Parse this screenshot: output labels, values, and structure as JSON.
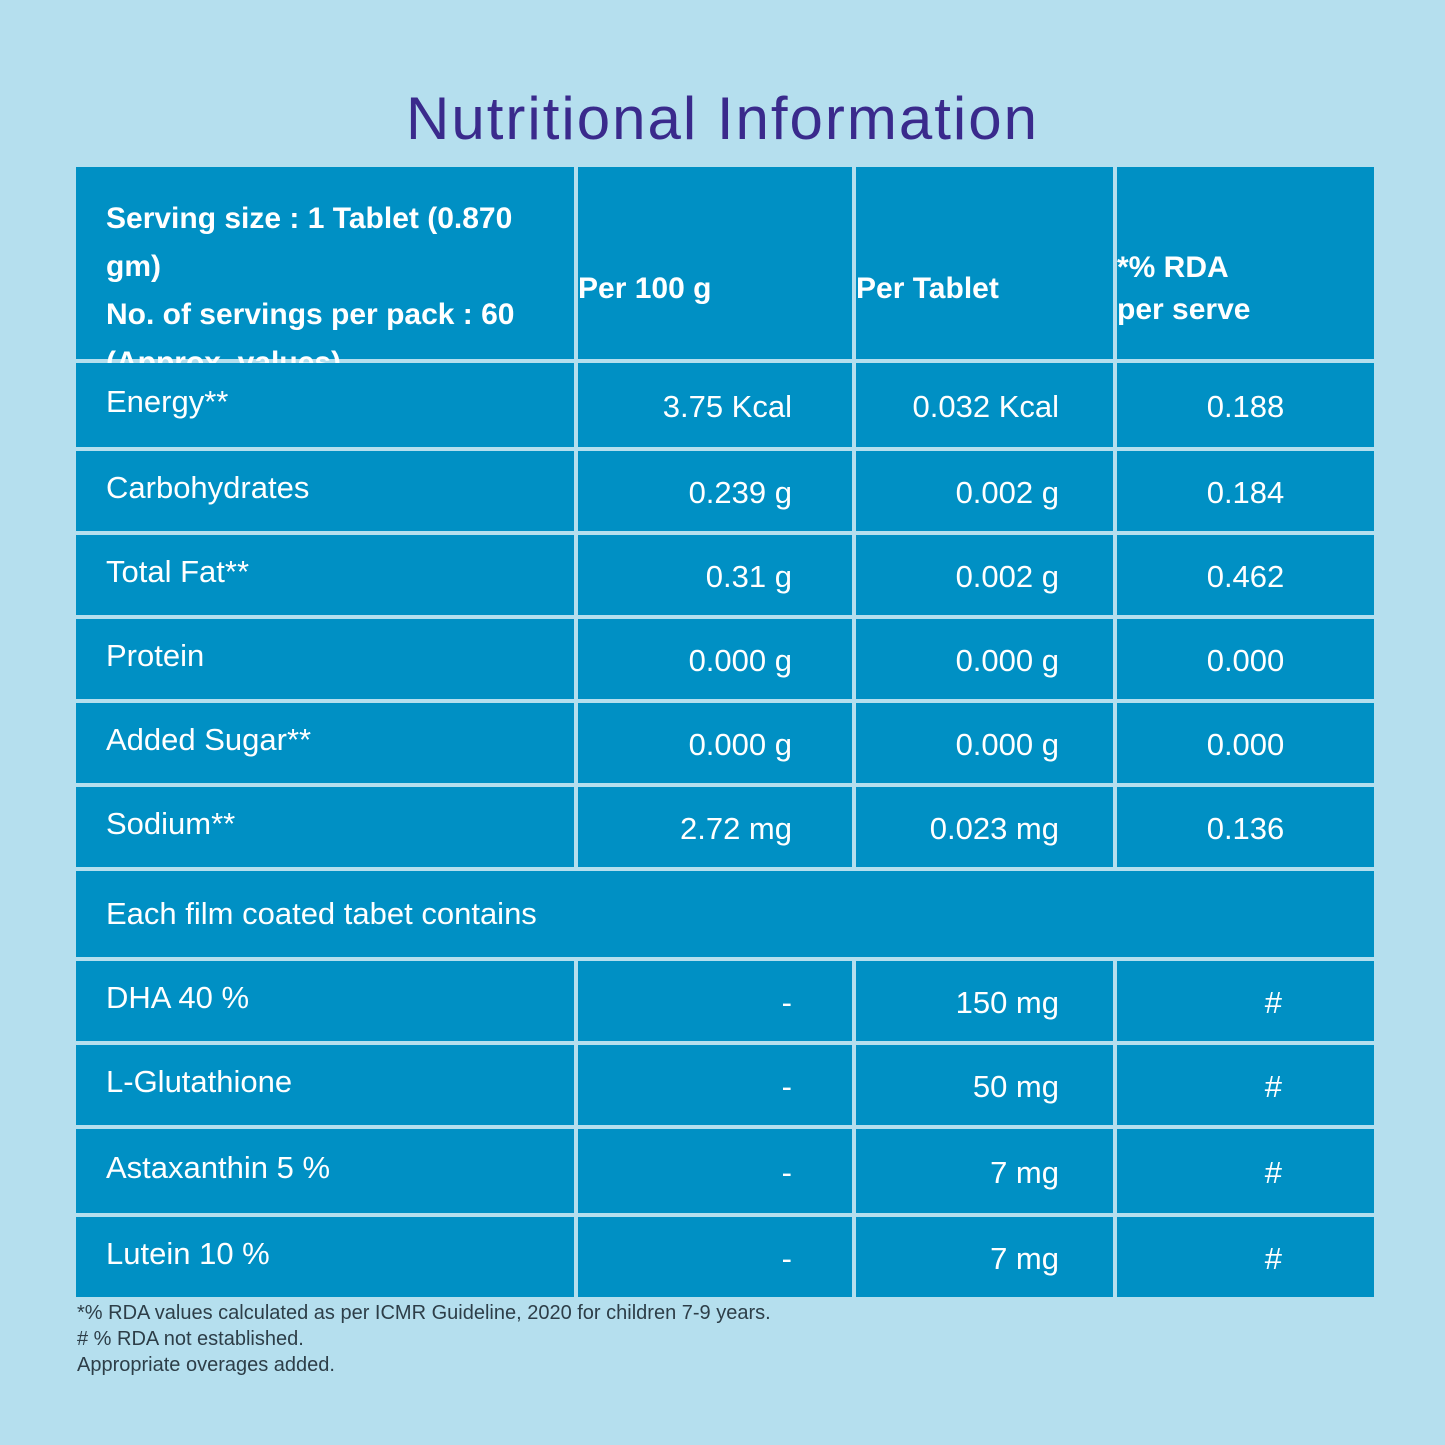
{
  "title": "Nutritional Information",
  "header": {
    "serving_line1": "Serving size : 1 Tablet (0.870 gm)",
    "serving_line2": "No. of servings per pack : 60",
    "serving_line3": "(Approx. values)",
    "col_per100": "Per 100 g",
    "col_per_tablet": "Per Tablet",
    "col_rda_line1": "*% RDA",
    "col_rda_line2": "per serve"
  },
  "nutrients": [
    {
      "name": "Energy**",
      "per100": "3.75 Kcal",
      "per_tablet": "0.032 Kcal",
      "rda": "0.188"
    },
    {
      "name": "Carbohydrates",
      "per100": "0.239 g",
      "per_tablet": "0.002 g",
      "rda": "0.184"
    },
    {
      "name": "Total Fat**",
      "per100": "0.31 g",
      "per_tablet": "0.002 g",
      "rda": "0.462"
    },
    {
      "name": "Protein",
      "per100": "0.000 g",
      "per_tablet": "0.000 g",
      "rda": "0.000"
    },
    {
      "name": "Added Sugar**",
      "per100": "0.000 g",
      "per_tablet": "0.000 g",
      "rda": "0.000"
    },
    {
      "name": "Sodium**",
      "per100": "2.72 mg",
      "per_tablet": "0.023 mg",
      "rda": "0.136"
    }
  ],
  "section_label": "Each film coated tabet contains",
  "ingredients": [
    {
      "name": "DHA 40 %",
      "per100": "-",
      "per_tablet": "150 mg",
      "rda": "#"
    },
    {
      "name": "L-Glutathione",
      "per100": "-",
      "per_tablet": "50 mg",
      "rda": "#"
    },
    {
      "name": "Astaxanthin 5 %",
      "per100": "-",
      "per_tablet": "7 mg",
      "rda": "#"
    },
    {
      "name": "Lutein 10 %",
      "per100": "-",
      "per_tablet": "7 mg",
      "rda": "#"
    }
  ],
  "footnotes": [
    "*% RDA values calculated as per ICMR Guideline, 2020 for children 7-9 years.",
    "# % RDA not established.",
    "Appropriate overages added."
  ],
  "colors": {
    "background": "#b5dfee",
    "cell": "#0090c4",
    "title": "#3a2a8c"
  }
}
